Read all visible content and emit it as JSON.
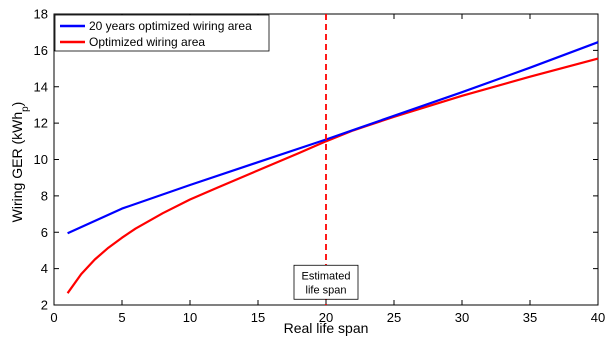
{
  "chart_data": {
    "type": "line",
    "title": "",
    "xlabel": "Real life span",
    "ylabel_main": "Wiring GER (kWh",
    "ylabel_sub": "p",
    "ylabel_close": ")",
    "xlim": [
      0,
      40
    ],
    "ylim": [
      2,
      18
    ],
    "xticks": [
      0,
      5,
      10,
      15,
      20,
      25,
      30,
      35,
      40
    ],
    "yticks": [
      2,
      4,
      6,
      8,
      10,
      12,
      14,
      16,
      18
    ],
    "grid": false,
    "legend_position": "top-left",
    "series": [
      {
        "name": "20 years optimized wiring area",
        "color": "#0000ff",
        "x": [
          1,
          5,
          10,
          15,
          20,
          25,
          30,
          35,
          40
        ],
        "y": [
          5.95,
          7.3,
          8.6,
          9.85,
          11.1,
          12.4,
          13.7,
          15.05,
          16.45
        ]
      },
      {
        "name": "Optimized wiring area",
        "color": "#ff0000",
        "x": [
          1,
          2,
          3,
          4,
          5,
          6,
          8,
          10,
          12,
          15,
          18,
          20,
          22,
          25,
          30,
          35,
          40
        ],
        "y": [
          2.65,
          3.7,
          4.5,
          5.15,
          5.7,
          6.2,
          7.05,
          7.8,
          8.45,
          9.4,
          10.35,
          11.0,
          11.6,
          12.35,
          13.5,
          14.55,
          15.55
        ]
      }
    ],
    "vline": {
      "x": 20,
      "color": "#ff0000",
      "style": "dashed"
    },
    "annotation": {
      "lines": [
        "Estimated",
        "life span"
      ],
      "x": 20,
      "y": 3.25
    }
  }
}
